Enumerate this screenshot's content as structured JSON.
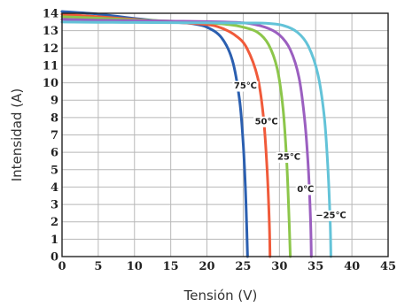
{
  "chart_data": {
    "type": "line",
    "title": "",
    "xlabel": "Tensión (V)",
    "ylabel": "Intensidad (A)",
    "xlim": [
      0,
      45
    ],
    "ylim": [
      0,
      14
    ],
    "x_ticks": [
      "0",
      "5",
      "10",
      "15",
      "20",
      "25",
      "30",
      "35",
      "40",
      "45"
    ],
    "y_ticks": [
      "0",
      "1",
      "2",
      "3",
      "4",
      "5",
      "6",
      "7",
      "8",
      "9",
      "10",
      "11",
      "12",
      "13",
      "14"
    ],
    "grid": true,
    "legend": "none",
    "series": [
      {
        "name": "75℃",
        "color": "#2b5fb0",
        "label_at": [
          25.3,
          9.85
        ],
        "points": [
          [
            0,
            14.1
          ],
          [
            5,
            13.95
          ],
          [
            10,
            13.7
          ],
          [
            15,
            13.5
          ],
          [
            18,
            13.4
          ],
          [
            20,
            13.2
          ],
          [
            22,
            12.6
          ],
          [
            23.5,
            11.3
          ],
          [
            24.5,
            9.0
          ],
          [
            25,
            6.5
          ],
          [
            25.3,
            4.0
          ],
          [
            25.5,
            1.5
          ],
          [
            25.6,
            0
          ]
        ]
      },
      {
        "name": "50℃",
        "color": "#f05a3a",
        "label_at": [
          28.2,
          7.8
        ],
        "points": [
          [
            0,
            13.95
          ],
          [
            5,
            13.8
          ],
          [
            10,
            13.65
          ],
          [
            15,
            13.5
          ],
          [
            20,
            13.35
          ],
          [
            22,
            13.15
          ],
          [
            24,
            12.7
          ],
          [
            25.5,
            12.0
          ],
          [
            27,
            10.3
          ],
          [
            27.8,
            8.0
          ],
          [
            28.3,
            5.0
          ],
          [
            28.6,
            2.0
          ],
          [
            28.7,
            0
          ]
        ]
      },
      {
        "name": "25℃",
        "color": "#8cc64a",
        "label_at": [
          31.3,
          5.75
        ],
        "points": [
          [
            0,
            13.8
          ],
          [
            5,
            13.72
          ],
          [
            10,
            13.62
          ],
          [
            15,
            13.55
          ],
          [
            20,
            13.45
          ],
          [
            23,
            13.35
          ],
          [
            25,
            13.2
          ],
          [
            27,
            12.9
          ],
          [
            28.5,
            12.2
          ],
          [
            29.7,
            10.8
          ],
          [
            30.5,
            8.5
          ],
          [
            31,
            5.5
          ],
          [
            31.3,
            2.5
          ],
          [
            31.5,
            0
          ]
        ]
      },
      {
        "name": "0℃",
        "color": "#9b5fc0",
        "label_at": [
          33.6,
          3.9
        ],
        "points": [
          [
            0,
            13.65
          ],
          [
            5,
            13.6
          ],
          [
            10,
            13.58
          ],
          [
            15,
            13.55
          ],
          [
            20,
            13.52
          ],
          [
            25,
            13.45
          ],
          [
            28,
            13.2
          ],
          [
            30,
            12.75
          ],
          [
            31.5,
            11.9
          ],
          [
            32.7,
            10.3
          ],
          [
            33.5,
            7.8
          ],
          [
            34,
            5.0
          ],
          [
            34.3,
            2.0
          ],
          [
            34.4,
            0
          ]
        ]
      },
      {
        "name": "−25℃",
        "color": "#63c3d8",
        "label_at": [
          37.1,
          2.4
        ],
        "points": [
          [
            0,
            13.5
          ],
          [
            5,
            13.48
          ],
          [
            10,
            13.47
          ],
          [
            15,
            13.46
          ],
          [
            20,
            13.45
          ],
          [
            25,
            13.44
          ],
          [
            28,
            13.43
          ],
          [
            30.5,
            13.3
          ],
          [
            32.5,
            12.9
          ],
          [
            34,
            12.1
          ],
          [
            35.3,
            10.5
          ],
          [
            36.2,
            8.0
          ],
          [
            36.7,
            5.0
          ],
          [
            37,
            2.0
          ],
          [
            37.1,
            0
          ]
        ]
      }
    ]
  }
}
